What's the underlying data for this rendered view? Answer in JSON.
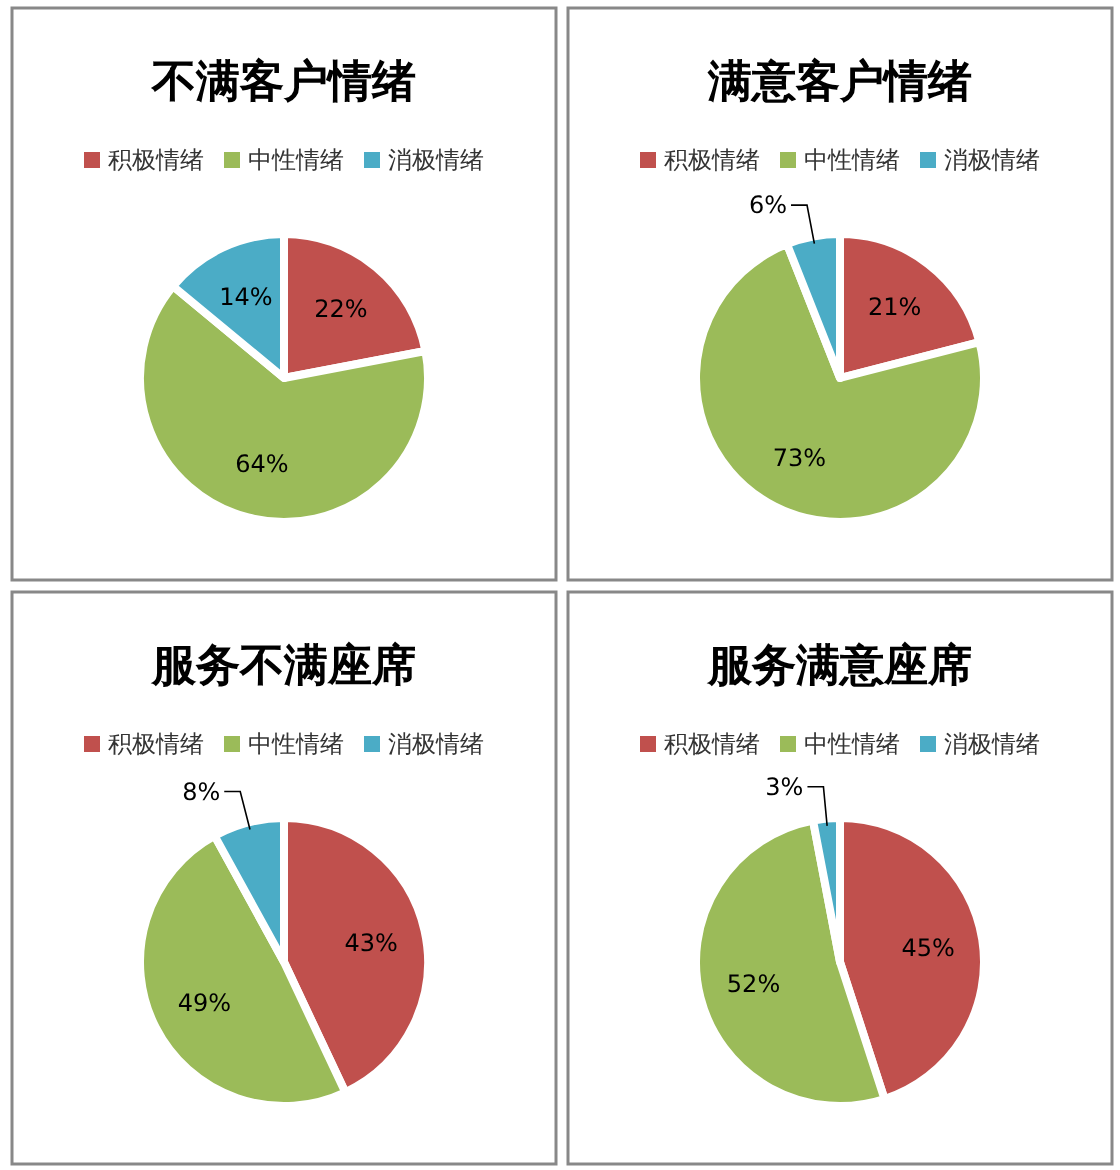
{
  "chart_data": [
    {
      "type": "pie",
      "title": "不满客户情绪",
      "categories": [
        "积极情绪",
        "中性情绪",
        "消极情绪"
      ],
      "values": [
        22,
        64,
        14
      ],
      "value_labels": [
        "22%",
        "64%",
        "14%"
      ],
      "colors": [
        "#c0504d",
        "#9bbb59",
        "#4bacc6"
      ],
      "legend": "top"
    },
    {
      "type": "pie",
      "title": "满意客户情绪",
      "categories": [
        "积极情绪",
        "中性情绪",
        "消极情绪"
      ],
      "values": [
        21,
        73,
        6
      ],
      "value_labels": [
        "21%",
        "73%",
        "6%"
      ],
      "colors": [
        "#c0504d",
        "#9bbb59",
        "#4bacc6"
      ],
      "legend": "top"
    },
    {
      "type": "pie",
      "title": "服务不满座席",
      "categories": [
        "积极情绪",
        "中性情绪",
        "消极情绪"
      ],
      "values": [
        43,
        49,
        8
      ],
      "value_labels": [
        "43%",
        "49%",
        "8%"
      ],
      "colors": [
        "#c0504d",
        "#9bbb59",
        "#4bacc6"
      ],
      "legend": "top"
    },
    {
      "type": "pie",
      "title": "服务满意座席",
      "categories": [
        "积极情绪",
        "中性情绪",
        "消极情绪"
      ],
      "values": [
        45,
        52,
        3
      ],
      "value_labels": [
        "45%",
        "52%",
        "3%"
      ],
      "colors": [
        "#c0504d",
        "#9bbb59",
        "#4bacc6"
      ],
      "legend": "top"
    }
  ]
}
